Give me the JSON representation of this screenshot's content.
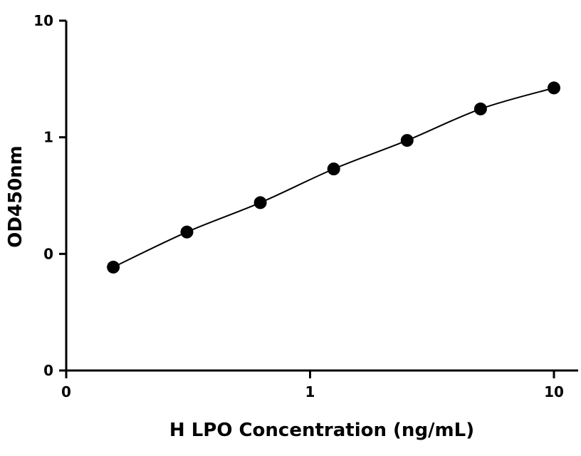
{
  "chart_data": {
    "type": "scatter",
    "title": "",
    "xlabel": "H LPO Concentration (ng/mL)",
    "ylabel": "OD450nm",
    "x_scale": "log",
    "y_scale": "log",
    "xlim": [
      0.1,
      10
    ],
    "ylim": [
      0.01,
      10
    ],
    "x_ticks": [
      {
        "value": 0.1,
        "label": "0"
      },
      {
        "value": 1,
        "label": "1"
      },
      {
        "value": 10,
        "label": "10"
      }
    ],
    "y_ticks": [
      {
        "value": 0.01,
        "label": "0"
      },
      {
        "value": 0.1,
        "label": "0"
      },
      {
        "value": 1,
        "label": "1"
      },
      {
        "value": 10,
        "label": "10"
      }
    ],
    "grid": false,
    "legend": "none",
    "marker_color": "#000000",
    "fit_line": "smooth curve through points",
    "series": [
      {
        "x": [
          0.156,
          0.3125,
          0.625,
          1.25,
          2.5,
          5,
          10
        ],
        "y": [
          0.077,
          0.154,
          0.275,
          0.535,
          0.94,
          1.75,
          2.65
        ]
      }
    ]
  }
}
